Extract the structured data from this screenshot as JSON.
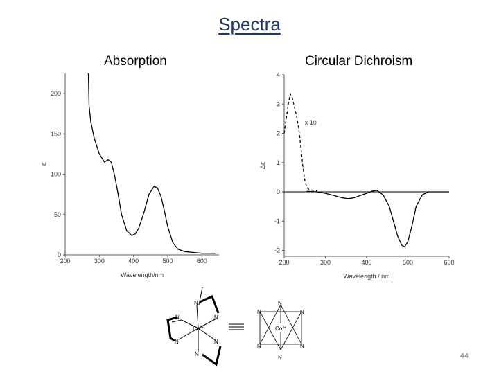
{
  "slide": {
    "title": "Spectra",
    "page_number": "44"
  },
  "chart_data": [
    {
      "type": "line",
      "panel_title": "Absorption",
      "xlabel": "Wavelength/nm",
      "ylabel": "ε",
      "xlim": [
        200,
        650
      ],
      "ylim": [
        0,
        225
      ],
      "xticks": [
        200,
        300,
        400,
        500,
        600
      ],
      "yticks": [
        0,
        50,
        100,
        150,
        200
      ],
      "grid": false,
      "series": [
        {
          "style": "solid",
          "x": [
            268,
            270,
            275,
            285,
            300,
            315,
            325,
            335,
            345,
            355,
            365,
            380,
            395,
            405,
            415,
            430,
            445,
            460,
            470,
            480,
            490,
            500,
            515,
            530,
            550,
            575,
            600,
            625,
            640
          ],
          "y": [
            225,
            185,
            165,
            145,
            125,
            115,
            118,
            115,
            98,
            75,
            50,
            30,
            24,
            26,
            33,
            52,
            75,
            85,
            83,
            73,
            55,
            35,
            15,
            7,
            4,
            3,
            2,
            2,
            2
          ]
        }
      ]
    },
    {
      "type": "line",
      "panel_title": "Circular Dichroism",
      "xlabel": "Wavelength / nm",
      "ylabel": "Δε",
      "xlim": [
        200,
        600
      ],
      "ylim": [
        -2.2,
        4
      ],
      "xticks": [
        200,
        300,
        400,
        500,
        600
      ],
      "yticks": [
        -2,
        -1,
        0,
        1,
        2,
        3,
        4
      ],
      "grid": false,
      "annotation": "x 10",
      "series": [
        {
          "style": "dashed",
          "x": [
            200,
            205,
            210,
            215,
            220,
            225,
            230,
            235,
            240,
            245,
            250,
            255,
            260,
            270,
            280
          ],
          "y": [
            2.0,
            2.5,
            3.0,
            3.35,
            3.2,
            2.9,
            2.6,
            2.2,
            1.6,
            0.9,
            0.4,
            0.15,
            0.08,
            0.05,
            0.03
          ]
        },
        {
          "style": "solid",
          "x": [
            255,
            280,
            300,
            320,
            340,
            355,
            370,
            385,
            400,
            415,
            425,
            440,
            455,
            465,
            475,
            485,
            492,
            500,
            510,
            520,
            535,
            550,
            575,
            600
          ],
          "y": [
            0.02,
            0.0,
            -0.05,
            -0.12,
            -0.2,
            -0.23,
            -0.2,
            -0.12,
            -0.05,
            0.03,
            0.05,
            -0.1,
            -0.5,
            -1.0,
            -1.5,
            -1.82,
            -1.88,
            -1.7,
            -1.15,
            -0.5,
            -0.1,
            0.0,
            0.0,
            0.0
          ]
        }
      ]
    }
  ],
  "structure": {
    "left_labels": [
      "N",
      "N",
      "N",
      "N",
      "N",
      "N"
    ],
    "left_center": "Co",
    "left_charge": "3+",
    "right_labels": [
      "N",
      "N",
      "N",
      "N",
      "N",
      "N"
    ],
    "right_center": "Co",
    "right_charge": "3+"
  }
}
